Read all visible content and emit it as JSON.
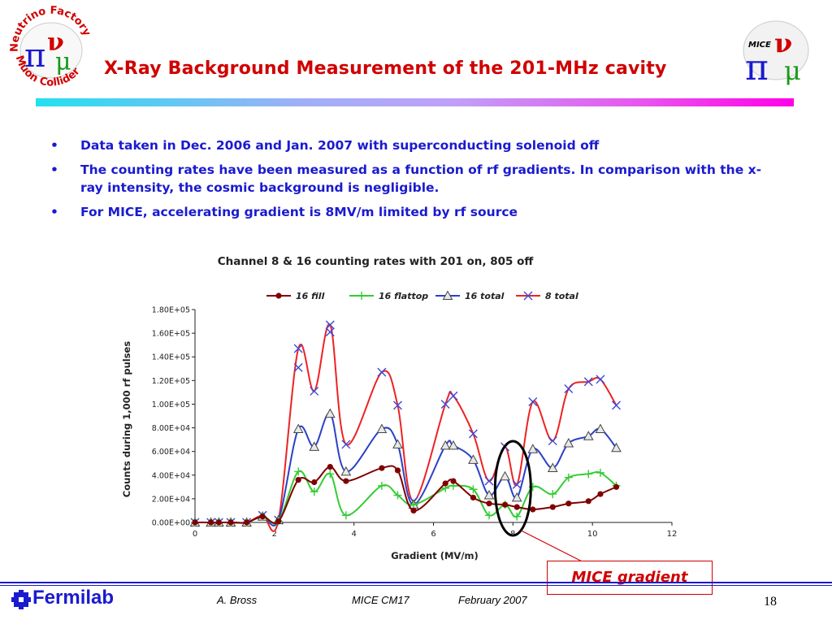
{
  "slide": {
    "title": "X-Ray Background Measurement of the 201-MHz cavity",
    "bullets": [
      "Data taken in Dec. 2006 and Jan. 2007 with superconducting solenoid off",
      "The counting rates have been measured as a function of rf gradients. In comparison with the x-ray intensity, the cosmic background is negligible.",
      "For MICE, accelerating gradient is 8MV/m limited by rf source"
    ],
    "bullet_symbol": "•",
    "callout": "MICE gradient",
    "logos": {
      "left": {
        "top_text": "Neutrino Factory",
        "bottom_text": "Muon Collider",
        "symbols": "πνμ"
      },
      "right": {
        "label": "MICE",
        "symbols": "πνμ"
      }
    },
    "footer": {
      "org": "Fermilab",
      "author": "A. Bross",
      "meeting": "MICE CM17",
      "date": "February 2007",
      "page": "18"
    },
    "colors": {
      "title": "#d00000",
      "bullet_text": "#1a1ad0",
      "callout": "#d00000",
      "footer_rule": "#1a1ad0"
    }
  },
  "chart_data": {
    "type": "line",
    "title": "Channel 8 & 16 counting rates with 201 on, 805 off",
    "xlabel": "Gradient (MV/m)",
    "ylabel": "Counts during 1,000 rf pulses",
    "xlim": [
      0,
      12
    ],
    "ylim": [
      0,
      180000
    ],
    "xticks": [
      "0",
      "2",
      "4",
      "6",
      "8",
      "10",
      "12"
    ],
    "yticks": [
      "0.00E+00",
      "2.00E+04",
      "4.00E+04",
      "6.00E+04",
      "8.00E+04",
      "1.00E+05",
      "1.20E+05",
      "1.40E+05",
      "1.60E+05",
      "1.80E+05"
    ],
    "legend_position": "top",
    "grid": false,
    "series": [
      {
        "name": "16 fill",
        "color": "#800000",
        "marker": "circle",
        "points": [
          [
            0,
            0
          ],
          [
            0.4,
            0
          ],
          [
            0.6,
            0
          ],
          [
            0.9,
            0
          ],
          [
            1.3,
            0
          ],
          [
            1.7,
            5000
          ],
          [
            2.1,
            1000
          ],
          [
            2.6,
            36000
          ],
          [
            3.0,
            34000
          ],
          [
            3.4,
            47000
          ],
          [
            3.8,
            35000
          ],
          [
            4.7,
            46000
          ],
          [
            5.1,
            44000
          ],
          [
            5.5,
            10000
          ],
          [
            6.3,
            33000
          ],
          [
            6.5,
            35000
          ],
          [
            7.0,
            21000
          ],
          [
            7.4,
            16000
          ],
          [
            7.8,
            15000
          ],
          [
            8.1,
            13000
          ],
          [
            8.5,
            11000
          ],
          [
            9.0,
            13000
          ],
          [
            9.4,
            16000
          ],
          [
            9.9,
            18000
          ],
          [
            10.2,
            24000
          ],
          [
            10.6,
            30000
          ]
        ]
      },
      {
        "name": "16 flattop",
        "color": "#33cc33",
        "marker": "plus",
        "points": [
          [
            0,
            0
          ],
          [
            0.4,
            0
          ],
          [
            0.6,
            0
          ],
          [
            0.9,
            0
          ],
          [
            1.3,
            0
          ],
          [
            1.7,
            5000
          ],
          [
            2.1,
            1000
          ],
          [
            2.6,
            43000
          ],
          [
            3.0,
            26000
          ],
          [
            3.4,
            41000
          ],
          [
            3.8,
            6000
          ],
          [
            4.7,
            31000
          ],
          [
            5.1,
            23000
          ],
          [
            5.5,
            15000
          ],
          [
            6.3,
            29000
          ],
          [
            6.5,
            31000
          ],
          [
            7.0,
            28000
          ],
          [
            7.4,
            6000
          ],
          [
            7.8,
            15000
          ],
          [
            8.1,
            5000
          ],
          [
            8.5,
            30000
          ],
          [
            9.0,
            24000
          ],
          [
            9.4,
            38000
          ],
          [
            9.9,
            41000
          ],
          [
            10.2,
            42000
          ],
          [
            10.6,
            31000
          ]
        ]
      },
      {
        "name": "16 total",
        "color": "#2a40c8",
        "marker": "triangle",
        "points": [
          [
            0,
            0
          ],
          [
            0.4,
            0
          ],
          [
            0.6,
            0
          ],
          [
            0.9,
            0
          ],
          [
            1.3,
            0
          ],
          [
            1.7,
            5000
          ],
          [
            2.1,
            2000
          ],
          [
            2.6,
            79000
          ],
          [
            3.0,
            64000
          ],
          [
            3.4,
            92000
          ],
          [
            3.8,
            43000
          ],
          [
            4.7,
            79000
          ],
          [
            5.1,
            66000
          ],
          [
            5.5,
            15000
          ],
          [
            6.3,
            65000
          ],
          [
            6.5,
            65000
          ],
          [
            7.0,
            53000
          ],
          [
            7.4,
            23000
          ],
          [
            7.8,
            39000
          ],
          [
            8.1,
            21000
          ],
          [
            8.5,
            62000
          ],
          [
            9.0,
            46000
          ],
          [
            9.4,
            67000
          ],
          [
            9.9,
            73000
          ],
          [
            10.2,
            79000
          ],
          [
            10.6,
            63000
          ]
        ]
      },
      {
        "name": "8 total",
        "color": "#ee2222",
        "marker": "cross",
        "points": [
          [
            0,
            0
          ],
          [
            0.4,
            0
          ],
          [
            0.6,
            0
          ],
          [
            0.9,
            0
          ],
          [
            1.3,
            0
          ],
          [
            1.7,
            6000
          ],
          [
            2.1,
            2000
          ],
          [
            2.6,
            147000
          ],
          [
            2.6,
            131000
          ],
          [
            3.0,
            111000
          ],
          [
            3.4,
            167000
          ],
          [
            3.4,
            161000
          ],
          [
            3.8,
            66000
          ],
          [
            4.7,
            127000
          ],
          [
            5.1,
            99000
          ],
          [
            5.5,
            18000
          ],
          [
            6.3,
            100000
          ],
          [
            6.5,
            107000
          ],
          [
            7.0,
            75000
          ],
          [
            7.4,
            35000
          ],
          [
            7.8,
            64000
          ],
          [
            8.1,
            32000
          ],
          [
            8.5,
            102000
          ],
          [
            9.0,
            69000
          ],
          [
            9.4,
            113000
          ],
          [
            9.9,
            119000
          ],
          [
            10.2,
            121000
          ],
          [
            10.6,
            99000
          ]
        ]
      }
    ],
    "highlight": {
      "shape": "ellipse",
      "x": 8,
      "color": "#000000"
    }
  }
}
